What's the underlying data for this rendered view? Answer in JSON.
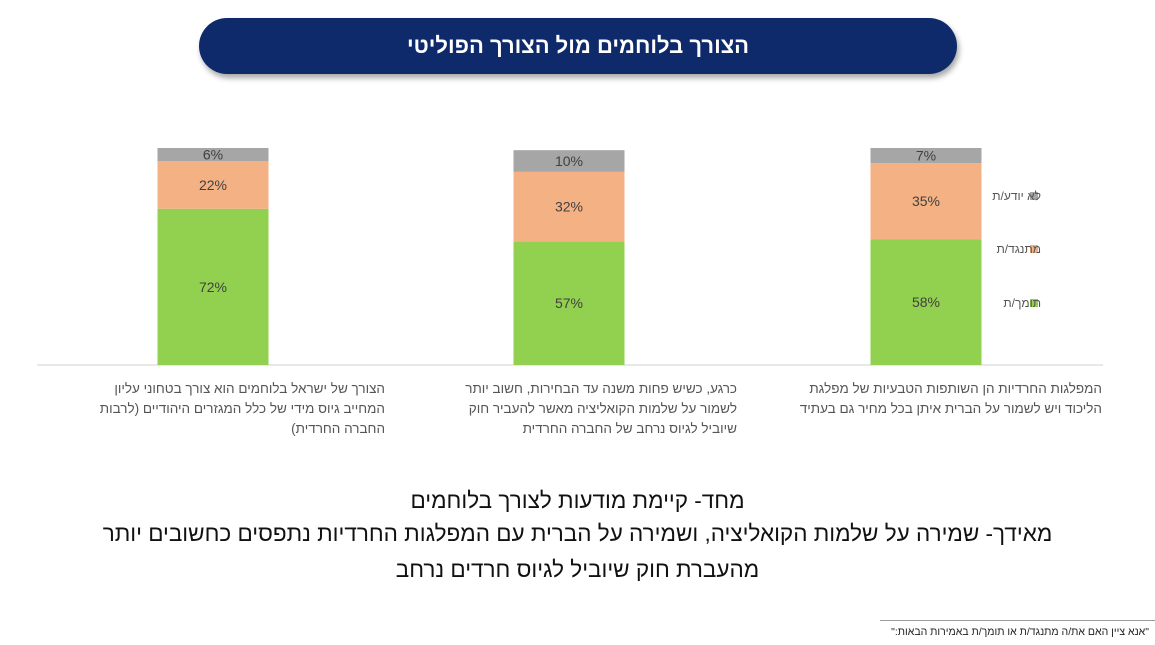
{
  "title": "הצורך בלוחמים מול הצורך הפוליטי",
  "chart_data": {
    "type": "stacked-bar-100",
    "categories": [
      "הצורך של ישראל בלוחמים הוא צורך בטחוני עליון המחייב גיוס מידי של כלל המגזרים היהודיים (לרבות החברה החרדית)",
      "כרגע, כשיש פחות משנה עד הבחירות, חשוב יותר לשמור על שלמות הקואליציה מאשר להעביר חוק שיוביל לגיוס נרחב של החברה החרדית",
      "המפלגות החרדיות הן השותפות הטבעיות של מפלגת הליכוד ויש לשמור על הברית איתן בכל מחיר גם בעתיד"
    ],
    "category_lines": [
      [
        "הצורך של ישראל בלוחמים הוא צורך בטחוני עליון",
        "המחייב גיוס מידי של כלל המגזרים היהודיים (לרבות",
        "החברה החרדית)"
      ],
      [
        "כרגע, כשיש פחות משנה עד הבחירות, חשוב יותר",
        "לשמור על שלמות הקואליציה מאשר להעביר חוק",
        "שיוביל לגיוס נרחב של החברה החרדית"
      ],
      [
        "המפלגות החרדיות הן השותפות הטבעיות של מפלגת",
        "הליכוד ויש לשמור על הברית איתן בכל מחיר גם בעתיד"
      ]
    ],
    "series": [
      {
        "name": "תומך/ת",
        "color": "#92d050",
        "values": [
          72,
          57,
          58
        ],
        "labels": [
          "72%",
          "57%",
          "58%"
        ]
      },
      {
        "name": "מתנגד/ת",
        "color": "#f4b183",
        "values": [
          22,
          32,
          35
        ],
        "labels": [
          "22%",
          "32%",
          "35%"
        ]
      },
      {
        "name": "לא יודע/ת",
        "color": "#a6a6a6",
        "values": [
          6,
          10,
          7
        ],
        "labels": [
          "6%",
          "10%",
          "7%"
        ]
      }
    ],
    "legend": [
      "לא יודע/ת",
      "מתנגד/ת",
      "תומך/ת"
    ],
    "legend_position": "right",
    "ylim": [
      0,
      100
    ]
  },
  "summary": {
    "line1": "מחד- קיימת מודעות לצורך בלוחמים",
    "line2": "מאידך- שמירה על שלמות הקואליציה, ושמירה על הברית עם המפלגות החרדיות נתפסים כחשובים יותר",
    "line3": "מהעברת חוק שיוביל לגיוס חרדים נרחב"
  },
  "footnote": "\"אנא ציין האם את/ה מתנגד/ת או תומך/ת באמירות הבאות:\""
}
